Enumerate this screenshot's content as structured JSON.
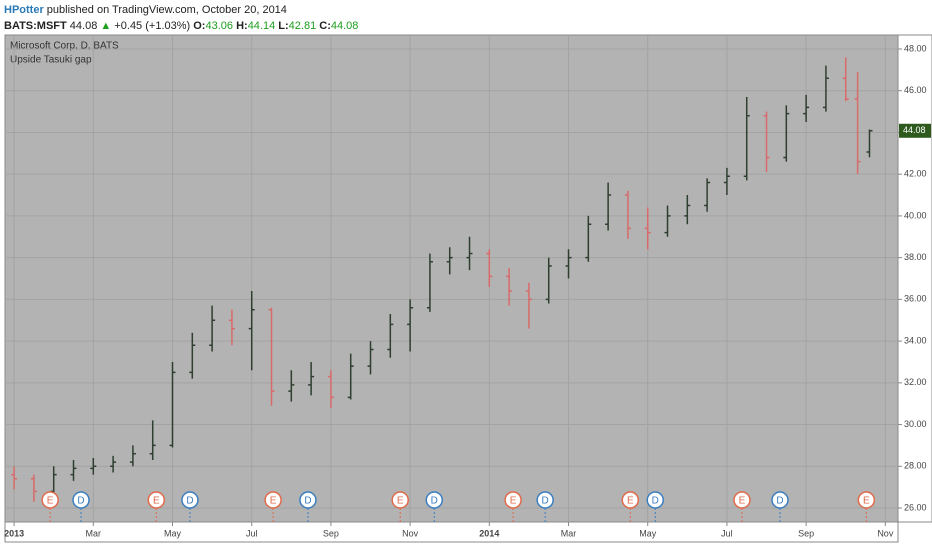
{
  "header": {
    "author": "HPotter",
    "published": "published on TradingView.com, October 20, 2014",
    "symbol": "BATS:MSFT",
    "price": "44.08",
    "arrow": "▲",
    "change": "+0.45 (+1.03%)",
    "o_label": "O:",
    "o": "43.06",
    "h_label": "H:",
    "h": "44.14",
    "l_label": "L:",
    "l": "42.81",
    "c_label": "C:",
    "c": "44.08"
  },
  "chart_data": {
    "type": "ohlc",
    "title": "Microsoft Corp, D, BATS",
    "indicator": "Upside Tasuki gap",
    "up_color": "#2f3f2f",
    "down_color": "#d96a6a",
    "grid": true,
    "xlim": [
      -0.23,
      22.32
    ],
    "ylim": [
      25.33,
      48.67
    ],
    "xticks": [
      {
        "value": 0,
        "label": "2013"
      },
      {
        "value": 2,
        "label": "Mar"
      },
      {
        "value": 4,
        "label": "May"
      },
      {
        "value": 6,
        "label": "Jul"
      },
      {
        "value": 8,
        "label": "Sep"
      },
      {
        "value": 10,
        "label": "Nov"
      },
      {
        "value": 12,
        "label": "2014"
      },
      {
        "value": 14,
        "label": "Mar"
      },
      {
        "value": 16,
        "label": "May"
      },
      {
        "value": 18,
        "label": "Jul"
      },
      {
        "value": 20,
        "label": "Sep"
      },
      {
        "value": 22,
        "label": "Nov"
      }
    ],
    "yticks": [
      {
        "value": 26,
        "label": "26.00"
      },
      {
        "value": 28,
        "label": "28.00"
      },
      {
        "value": 30,
        "label": "30.00"
      },
      {
        "value": 32,
        "label": "32.00"
      },
      {
        "value": 34,
        "label": "34.00"
      },
      {
        "value": 36,
        "label": "36.00"
      },
      {
        "value": 38,
        "label": "38.00"
      },
      {
        "value": 40,
        "label": "40.00"
      },
      {
        "value": 42,
        "label": "42.00"
      },
      {
        "value": 44,
        "label": "44.00"
      },
      {
        "value": 46,
        "label": "46.00"
      },
      {
        "value": 48,
        "label": "48.00"
      }
    ],
    "last_value": 44.08,
    "last_label": "44.08",
    "series": [
      {
        "name": "MSFT",
        "x": [
          0,
          0.5,
          1,
          1.5,
          2,
          2.5,
          3,
          3.5,
          4,
          4.5,
          5,
          5.5,
          6,
          6.5,
          7,
          7.5,
          8,
          8.5,
          9,
          9.5,
          10,
          10.5,
          11,
          11.5,
          12,
          12.5,
          13,
          13.5,
          14,
          14.5,
          15,
          15.5,
          16,
          16.5,
          17,
          17.5,
          18,
          18.5,
          19,
          19.5,
          20,
          20.5,
          21,
          21.3,
          21.6
        ],
        "open": [
          27.6,
          27.4,
          26.8,
          27.6,
          27.9,
          28.0,
          28.2,
          28.6,
          29.0,
          32.5,
          33.8,
          35.0,
          34.6,
          35.5,
          31.6,
          31.9,
          32.3,
          31.3,
          32.8,
          33.6,
          34.8,
          35.6,
          37.8,
          38.0,
          38.2,
          37.1,
          36.4,
          36.0,
          37.6,
          38.0,
          39.6,
          41.0,
          39.4,
          39.2,
          40.0,
          40.5,
          41.6,
          41.9,
          44.8,
          42.8,
          44.9,
          45.2,
          46.6,
          45.6,
          43.06
        ],
        "high": [
          28.0,
          27.6,
          28.0,
          28.3,
          28.4,
          28.5,
          29.0,
          30.2,
          33.0,
          34.4,
          35.7,
          35.5,
          36.4,
          35.6,
          32.6,
          33.0,
          32.6,
          33.4,
          34.0,
          35.3,
          36.0,
          38.2,
          38.5,
          39.0,
          38.4,
          37.5,
          36.8,
          38.0,
          38.4,
          40.0,
          41.6,
          41.2,
          40.4,
          40.5,
          41.0,
          41.8,
          42.3,
          45.7,
          45.0,
          45.3,
          45.8,
          47.2,
          47.6,
          46.9,
          44.14
        ],
        "low": [
          26.9,
          26.3,
          26.6,
          27.3,
          27.6,
          27.7,
          28.0,
          28.3,
          28.9,
          32.2,
          33.5,
          33.8,
          32.6,
          30.9,
          31.1,
          31.4,
          30.8,
          31.2,
          32.4,
          33.2,
          33.5,
          35.4,
          37.2,
          37.4,
          36.6,
          35.7,
          34.6,
          35.8,
          37.0,
          37.8,
          39.3,
          38.9,
          38.4,
          39.0,
          39.6,
          40.2,
          41.0,
          41.7,
          42.1,
          42.6,
          44.5,
          45.0,
          45.5,
          42.0,
          42.81
        ],
        "close": [
          27.4,
          26.8,
          27.6,
          27.9,
          28.0,
          28.2,
          28.6,
          29.0,
          32.5,
          33.8,
          35.0,
          34.6,
          35.5,
          31.6,
          31.9,
          32.3,
          31.3,
          32.8,
          33.6,
          34.8,
          35.6,
          37.8,
          38.0,
          38.2,
          37.1,
          36.4,
          36.0,
          37.6,
          38.0,
          39.6,
          41.0,
          39.4,
          39.2,
          40.0,
          40.5,
          41.6,
          41.9,
          44.8,
          42.8,
          44.9,
          45.2,
          46.6,
          45.6,
          42.6,
          44.08
        ]
      }
    ],
    "events": [
      {
        "label": "E",
        "x": 0.91
      },
      {
        "label": "D",
        "x": 1.69
      },
      {
        "label": "E",
        "x": 3.59
      },
      {
        "label": "D",
        "x": 4.44
      },
      {
        "label": "E",
        "x": 6.54
      },
      {
        "label": "D",
        "x": 7.42
      },
      {
        "label": "E",
        "x": 9.75
      },
      {
        "label": "D",
        "x": 10.61
      },
      {
        "label": "E",
        "x": 12.6
      },
      {
        "label": "D",
        "x": 13.41
      },
      {
        "label": "E",
        "x": 15.56
      },
      {
        "label": "D",
        "x": 16.19
      },
      {
        "label": "E",
        "x": 18.38
      },
      {
        "label": "D",
        "x": 19.34
      },
      {
        "label": "E",
        "x": 21.52
      }
    ]
  }
}
